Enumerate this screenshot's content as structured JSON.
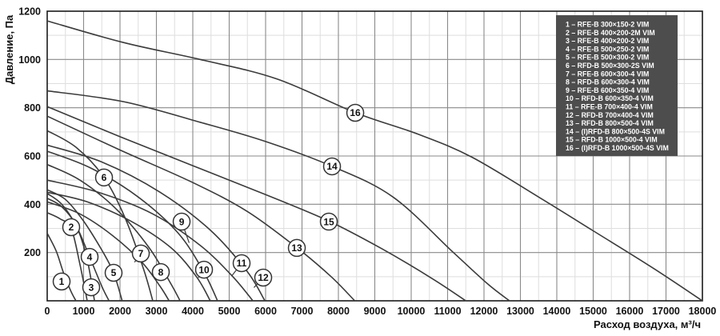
{
  "figure": {
    "ylabel": "Давление, Па",
    "xlabel": "Расход воздуха, м³/ч"
  },
  "colors": {
    "curve": "#3b3b3b",
    "grid_major": "#8a8a8a",
    "grid_minor": "#dedede",
    "border": "#1a1a1a",
    "legend_bg": "#4d4d4d",
    "legend_text": "#ffffff"
  },
  "legend": {
    "items": [
      "1 – RFE-B 300×150-2 VIM",
      "2 – RFE-B 400×200-2M VIM",
      "3 – RFE-B 400×200-2 VIM",
      "4 – RFE-B 500×250-2 VIM",
      "5 – RFE-B 500×300-2 VIM",
      "6 – RFD-B 500×300-2S VIM",
      "7 – RFE-B 600×300-4 VIM",
      "8 – RFD-B 600×300-4 VIM",
      "9 – RFE-B 600×350-4 VIM",
      "10 – RFD-B 600×350-4 VIM",
      "11 – RFE-B 700×400-4 VIM",
      "12 – RFD-B 700×400-4 VIM",
      "13 – RFD-B 800×500-4 VIM",
      "14 – (I)RFD-B 800×500-4S VIM",
      "15 – RFD-B 1000×500-4 VIM",
      "16 – (I)RFD-B 1000×500-4S VIM"
    ]
  },
  "chart_data": {
    "type": "line",
    "title": "",
    "xlabel": "Расход воздуха, м³/ч",
    "ylabel": "Давление, Па",
    "xlim": [
      0,
      18000
    ],
    "ylim": [
      0,
      1200
    ],
    "grid": "on",
    "x_minor_step": 500,
    "y_minor_step": 100,
    "x_ticks": [
      0,
      1000,
      2000,
      3000,
      4000,
      5000,
      6000,
      7000,
      8000,
      9000,
      10000,
      11000,
      12000,
      13000,
      14000,
      15000,
      16000,
      17000,
      18000
    ],
    "y_ticks": [
      200,
      400,
      600,
      800,
      1000,
      1200
    ],
    "legend_position": "top-right",
    "series": [
      {
        "label": "1",
        "name": "RFE-B 300×150-2 VIM",
        "label_at": [
          396,
          80
        ],
        "points": [
          [
            0,
            280
          ],
          [
            250,
            205
          ],
          [
            450,
            115
          ],
          [
            650,
            40
          ],
          [
            790,
            0
          ]
        ]
      },
      {
        "label": "2",
        "name": "RFE-B 400×200-2M VIM",
        "label_at": [
          659,
          305
        ],
        "points": [
          [
            0,
            365
          ],
          [
            350,
            340
          ],
          [
            660,
            300
          ],
          [
            900,
            150
          ],
          [
            1100,
            0
          ]
        ]
      },
      {
        "label": "3",
        "name": "RFE-B 400×200-2 VIM",
        "label_at": [
          1209,
          56
        ],
        "points": [
          [
            0,
            425
          ],
          [
            400,
            390
          ],
          [
            800,
            310
          ],
          [
            1100,
            170
          ],
          [
            1300,
            0
          ]
        ]
      },
      {
        "label": "4",
        "name": "RFE-B 500×250-2 VIM",
        "label_at": [
          1165,
          182
        ],
        "points": [
          [
            0,
            445
          ],
          [
            400,
            400
          ],
          [
            800,
            310
          ],
          [
            1165,
            182
          ],
          [
            1500,
            60
          ],
          [
            1700,
            0
          ]
        ]
      },
      {
        "label": "5",
        "name": "RFE-B 500×300-2 VIM",
        "label_at": [
          1824,
          116
        ],
        "points": [
          [
            0,
            460
          ],
          [
            500,
            420
          ],
          [
            1000,
            330
          ],
          [
            1500,
            210
          ],
          [
            1824,
            116
          ],
          [
            2060,
            0
          ]
        ]
      },
      {
        "label": "6",
        "name": "RFD-B 500×300-2S VIM",
        "label_at": [
          1561,
          511
        ],
        "points": [
          [
            0,
            705
          ],
          [
            800,
            635
          ],
          [
            1561,
            511
          ],
          [
            2150,
            340
          ],
          [
            2650,
            130
          ],
          [
            2900,
            0
          ]
        ]
      },
      {
        "label": "7",
        "name": "RFE-B 600×300-4 VIM",
        "label_at": [
          2572,
          196
        ],
        "leader_to": [
          2400,
          160
        ],
        "points": [
          [
            0,
            410
          ],
          [
            900,
            360
          ],
          [
            1800,
            270
          ],
          [
            2600,
            160
          ],
          [
            3100,
            60
          ],
          [
            3350,
            0
          ]
        ]
      },
      {
        "label": "8",
        "name": "RFD-B 600×300-4 VIM",
        "label_at": [
          3121,
          119
        ],
        "leader_to": [
          2880,
          118
        ],
        "points": [
          [
            0,
            565
          ],
          [
            900,
            500
          ],
          [
            1900,
            380
          ],
          [
            2800,
            220
          ],
          [
            3400,
            70
          ],
          [
            3650,
            0
          ]
        ]
      },
      {
        "label": "9",
        "name": "RFE-B 600×350-4 VIM",
        "label_at": [
          3693,
          328
        ],
        "leader_to": [
          3900,
          240
        ],
        "points": [
          [
            0,
            450
          ],
          [
            1100,
            410
          ],
          [
            2300,
            330
          ],
          [
            3400,
            220
          ],
          [
            4100,
            100
          ],
          [
            4480,
            0
          ]
        ]
      },
      {
        "label": "10",
        "name": "RFD-B 600×350-4 VIM",
        "label_at": [
          4308,
          129
        ],
        "leader_to": [
          4150,
          95
        ],
        "points": [
          [
            0,
            620
          ],
          [
            1200,
            550
          ],
          [
            2500,
            430
          ],
          [
            3600,
            280
          ],
          [
            4300,
            120
          ],
          [
            4680,
            0
          ]
        ]
      },
      {
        "label": "11",
        "name": "RFE-B 700×400-4 VIM",
        "label_at": [
          5341,
          156
        ],
        "leader_to": [
          5080,
          105
        ],
        "points": [
          [
            0,
            500
          ],
          [
            1400,
            450
          ],
          [
            2900,
            360
          ],
          [
            4200,
            230
          ],
          [
            5100,
            100
          ],
          [
            5650,
            0
          ]
        ]
      },
      {
        "label": "12",
        "name": "RFD-B 700×400-4 VIM",
        "label_at": [
          5934,
          96
        ],
        "leader_to": [
          5680,
          55
        ],
        "points": [
          [
            0,
            645
          ],
          [
            1500,
            575
          ],
          [
            3100,
            450
          ],
          [
            4500,
            290
          ],
          [
            5500,
            120
          ],
          [
            5980,
            0
          ]
        ]
      },
      {
        "label": "13",
        "name": "RFD-B 800×500-4 VIM",
        "label_at": [
          6858,
          219
        ],
        "points": [
          [
            0,
            765
          ],
          [
            2000,
            625
          ],
          [
            4000,
            490
          ],
          [
            5500,
            370
          ],
          [
            6860,
            220
          ],
          [
            7800,
            100
          ],
          [
            8450,
            0
          ]
        ]
      },
      {
        "label": "14",
        "name": "(I)RFD-B 800×500-4S VIM",
        "label_at": [
          7825,
          557
        ],
        "points": [
          [
            0,
            870
          ],
          [
            2100,
            825
          ],
          [
            4200,
            740
          ],
          [
            6000,
            660
          ],
          [
            7830,
            557
          ],
          [
            9500,
            430
          ],
          [
            11160,
            200
          ],
          [
            12100,
            70
          ],
          [
            12700,
            0
          ]
        ]
      },
      {
        "label": "15",
        "name": "RFD-B 1000×500-4 VIM",
        "label_at": [
          7737,
          328
        ],
        "points": [
          [
            0,
            805
          ],
          [
            2000,
            680
          ],
          [
            4000,
            560
          ],
          [
            6000,
            440
          ],
          [
            7740,
            330
          ],
          [
            9200,
            215
          ],
          [
            10600,
            90
          ],
          [
            11500,
            0
          ]
        ]
      },
      {
        "label": "16",
        "name": "(I)RFD-B 1000×500-4S VIM",
        "label_at": [
          8463,
          779
        ],
        "points": [
          [
            0,
            1160
          ],
          [
            2100,
            1070
          ],
          [
            4200,
            1000
          ],
          [
            6300,
            920
          ],
          [
            8460,
            780
          ],
          [
            10200,
            690
          ],
          [
            11670,
            595
          ],
          [
            13500,
            430
          ],
          [
            15000,
            290
          ],
          [
            16600,
            140
          ],
          [
            18000,
            0
          ]
        ]
      }
    ]
  }
}
